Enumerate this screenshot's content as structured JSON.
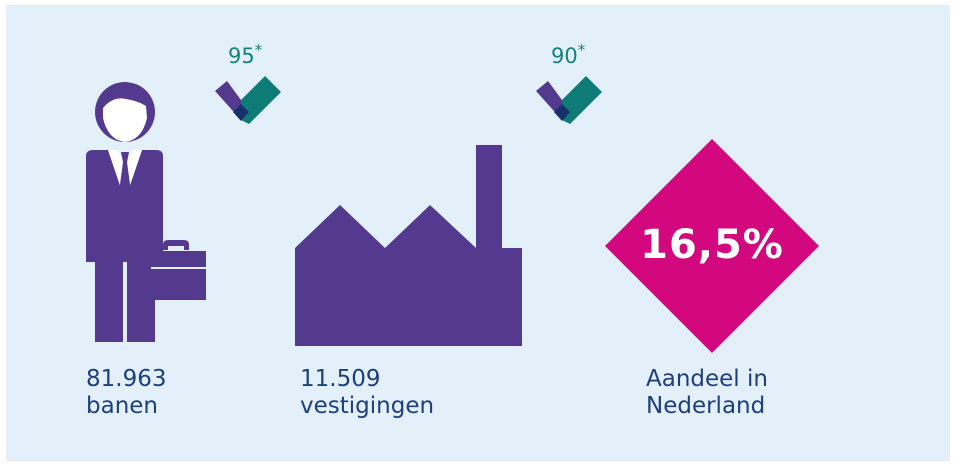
{
  "stats": {
    "jobs": {
      "value": "81.963",
      "label": "banen"
    },
    "establishments": {
      "value": "11.509",
      "label": "vestigingen"
    },
    "share": {
      "value": "16,5%",
      "line1": "Aandeel in",
      "line2": "Nederland"
    }
  },
  "scores": [
    {
      "value": "95",
      "marker": "*"
    },
    {
      "value": "90",
      "marker": "*"
    }
  ],
  "icons": {
    "person": "businessman-icon",
    "factory": "factory-icon",
    "check": "checkmark-icon",
    "diamond": "diamond-shape"
  },
  "colors": {
    "background": "#e3eff9",
    "purple": "#533a8e",
    "magenta": "#d3087e",
    "teal": "#0f7b77",
    "navy": "#17306b",
    "text": "#1d3f7c",
    "score_text": "#16827c"
  }
}
